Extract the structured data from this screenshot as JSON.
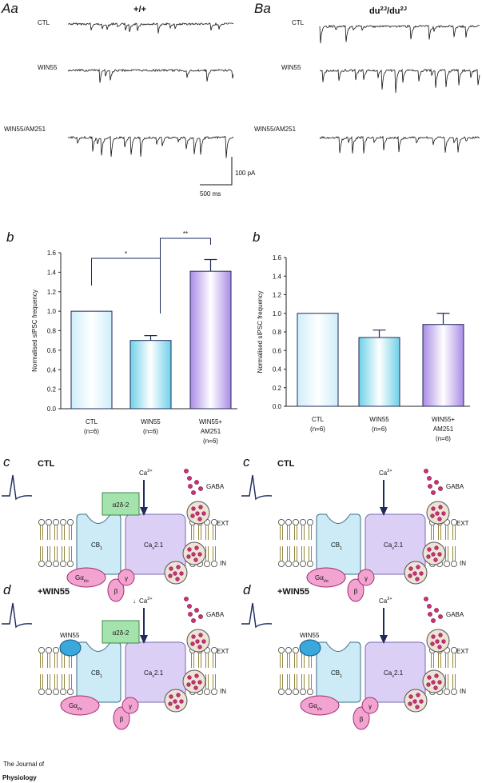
{
  "panel_labels": [
    "Aa",
    "Ba",
    "b",
    "b",
    "c",
    "c",
    "d",
    "d"
  ],
  "traces": {
    "titles": [
      [
        "+/+"
      ],
      [
        "du",
        "2J",
        "/du",
        "2J"
      ]
    ],
    "conditions": [
      "CTL",
      "WIN55",
      "WIN55/AM251"
    ],
    "scale_current": "100 pA",
    "scale_time": "500 ms"
  },
  "chart_data": [
    {
      "type": "bar",
      "ylabel": "Normalised sIPSC frequency",
      "categories": [
        [
          "CTL",
          "(n=6)"
        ],
        [
          "WIN55",
          "(n=6)"
        ],
        [
          "WIN55+",
          "AM251",
          "(n=6)"
        ]
      ],
      "values": [
        1.0,
        0.7,
        1.41
      ],
      "errors": [
        null,
        0.05,
        0.12
      ],
      "colors": [
        "#cdeefa",
        "#6fd0e8",
        "#a98be6"
      ],
      "annotations": [
        "*",
        "**"
      ],
      "ylim": [
        0,
        1.6
      ],
      "yticks": [
        {
          "value": 0,
          "label": "0.0"
        },
        {
          "value": 0.2,
          "label": "0.2"
        },
        {
          "value": 0.4,
          "label": "0.4"
        },
        {
          "value": 0.6,
          "label": "0.6"
        },
        {
          "value": 0.8,
          "label": "0.8"
        },
        {
          "value": 1.0,
          "label": "1.0"
        },
        {
          "value": 1.2,
          "label": "1.2"
        },
        {
          "value": 1.4,
          "label": "1.4"
        },
        {
          "value": 1.6,
          "label": "1.6"
        }
      ]
    },
    {
      "type": "bar",
      "ylabel": "Normalised sIPSC frequency",
      "categories": [
        [
          "CTL",
          "(n=6)"
        ],
        [
          "WIN55",
          "(n=6)"
        ],
        [
          "WIN55+",
          "AM251",
          "(n=6)"
        ]
      ],
      "values": [
        1.0,
        0.74,
        0.88
      ],
      "errors": [
        null,
        0.08,
        0.12
      ],
      "colors": [
        "#cdeefa",
        "#6fd0e8",
        "#a98be6"
      ],
      "ylim": [
        0,
        1.6
      ],
      "yticks": [
        {
          "value": 0,
          "label": "0.0"
        },
        {
          "value": 0.2,
          "label": "0.2"
        },
        {
          "value": 0.4,
          "label": "0.4"
        },
        {
          "value": 0.6,
          "label": "0.6"
        },
        {
          "value": 0.8,
          "label": "0.8"
        },
        {
          "value": 1.0,
          "label": "1.0"
        },
        {
          "value": 1.2,
          "label": "1.2"
        },
        {
          "value": 1.4,
          "label": "1.4"
        },
        {
          "value": 1.6,
          "label": "1.6"
        }
      ]
    }
  ],
  "diagrams": {
    "conditions": [
      "CTL",
      "+WIN55"
    ],
    "calcium": [
      "Ca",
      "2+"
    ],
    "reduced_marker": "↓",
    "gaba": "GABA",
    "ext": "EXT",
    "in": "IN",
    "cb1": [
      "CB",
      "1"
    ],
    "cav": [
      "Ca",
      "v",
      "2.1"
    ],
    "galpha": [
      "Gα",
      "i/o"
    ],
    "beta": "β",
    "gamma": "γ",
    "a2d": "α2δ-2",
    "win55": "WIN55"
  },
  "footer": [
    "The Journal of",
    "Physiology"
  ]
}
